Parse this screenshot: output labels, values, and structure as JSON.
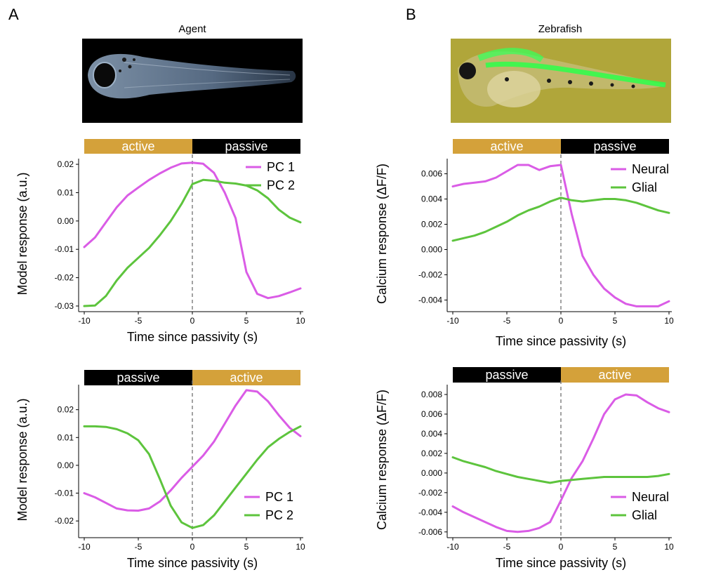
{
  "panels": [
    {
      "letter": "A",
      "image_title": "Agent",
      "image_kind": "agent-fish-image"
    },
    {
      "letter": "B",
      "image_title": "Zebrafish",
      "image_kind": "zebrafish-fluorescence-image"
    }
  ],
  "colors": {
    "magenta": "#DA5CE6",
    "green": "#5DC43D",
    "active": "#D4A13A",
    "passive": "#000000",
    "dashed": "#7a7a7a"
  },
  "chart_data": [
    {
      "id": "A-top",
      "type": "line",
      "xlabel": "Time since passivity (s)",
      "ylabel": "Model response (a.u.)",
      "xlim": [
        -10,
        10
      ],
      "ylim": [
        -0.031,
        0.022
      ],
      "xticks": [
        -10,
        -5,
        0,
        5,
        10
      ],
      "xtick_labels": [
        "-10",
        "-5",
        "0",
        "5",
        "10"
      ],
      "yticks": [
        -0.03,
        -0.02,
        -0.01,
        0.0,
        0.01,
        0.02
      ],
      "ytick_labels": [
        "-0.03",
        "-0.02",
        "-0.01",
        "0.00",
        "0.01",
        "0.02"
      ],
      "bands": [
        {
          "label": "active",
          "from": -10,
          "to": 0
        },
        {
          "label": "passive",
          "from": 0,
          "to": 10
        }
      ],
      "vline_x": 0,
      "legend_position": "top-right",
      "series": [
        {
          "name": "PC 1",
          "color": "magenta",
          "x": [
            -10,
            -9,
            -8,
            -7,
            -6,
            -5,
            -4,
            -3,
            -2,
            -1,
            0,
            1,
            2,
            3,
            4,
            5,
            6,
            7,
            8,
            9,
            10
          ],
          "y": [
            -0.0092,
            -0.0058,
            -0.0005,
            0.0048,
            0.009,
            0.0118,
            0.0145,
            0.0168,
            0.0188,
            0.0203,
            0.0206,
            0.0202,
            0.017,
            0.01,
            0.001,
            -0.018,
            -0.0257,
            -0.0272,
            -0.0265,
            -0.0252,
            -0.0238
          ]
        },
        {
          "name": "PC 2",
          "color": "green",
          "x": [
            -10,
            -9,
            -8,
            -7,
            -6,
            -5,
            -4,
            -3,
            -2,
            -1,
            0,
            1,
            2,
            3,
            4,
            5,
            6,
            7,
            8,
            9,
            10
          ],
          "y": [
            -0.03,
            -0.0298,
            -0.0265,
            -0.021,
            -0.0165,
            -0.013,
            -0.0095,
            -0.005,
            0.0,
            0.006,
            0.013,
            0.0145,
            0.0142,
            0.0135,
            0.0132,
            0.0125,
            0.0108,
            0.008,
            0.004,
            0.0012,
            -0.0005
          ]
        }
      ]
    },
    {
      "id": "B-top",
      "type": "line",
      "xlabel": "Time since passivity (s)",
      "ylabel": "Calcium  response (ΔF/F)",
      "xlim": [
        -10,
        10
      ],
      "ylim": [
        -0.0047,
        0.0072
      ],
      "xticks": [
        -10,
        -5,
        0,
        5,
        10
      ],
      "xtick_labels": [
        "-10",
        "-5",
        "0",
        "5",
        "10"
      ],
      "yticks": [
        -0.004,
        -0.002,
        0.0,
        0.002,
        0.004,
        0.006
      ],
      "ytick_labels": [
        "-0.004",
        "-0.002",
        "0.000",
        "0.002",
        "0.004",
        "0.006"
      ],
      "bands": [
        {
          "label": "active",
          "from": -10,
          "to": 0
        },
        {
          "label": "passive",
          "from": 0,
          "to": 10
        }
      ],
      "vline_x": 0,
      "legend_position": "top-right",
      "series": [
        {
          "name": "Neural",
          "color": "magenta",
          "x": [
            -10,
            -9,
            -8,
            -7,
            -6,
            -5,
            -4,
            -3,
            -2,
            -1,
            0,
            1,
            2,
            3,
            4,
            5,
            6,
            7,
            8,
            9,
            10
          ],
          "y": [
            0.005,
            0.0052,
            0.0053,
            0.0054,
            0.0057,
            0.0062,
            0.0067,
            0.0067,
            0.0063,
            0.0066,
            0.0067,
            0.0028,
            -0.0005,
            -0.002,
            -0.0031,
            -0.0038,
            -0.0043,
            -0.0045,
            -0.0045,
            -0.0045,
            -0.0041
          ]
        },
        {
          "name": "Glial",
          "color": "green",
          "x": [
            -10,
            -9,
            -8,
            -7,
            -6,
            -5,
            -4,
            -3,
            -2,
            -1,
            0,
            1,
            2,
            3,
            4,
            5,
            6,
            7,
            8,
            9,
            10
          ],
          "y": [
            0.0007,
            0.0009,
            0.0011,
            0.0014,
            0.0018,
            0.0022,
            0.0027,
            0.0031,
            0.0034,
            0.0038,
            0.0041,
            0.0039,
            0.0038,
            0.0039,
            0.004,
            0.004,
            0.0039,
            0.0037,
            0.0034,
            0.0031,
            0.0029
          ]
        }
      ]
    },
    {
      "id": "A-bottom",
      "type": "line",
      "xlabel": "Time since passivity (s)",
      "ylabel": "Model response (a.u.)",
      "xlim": [
        -10,
        10
      ],
      "ylim": [
        -0.025,
        0.029
      ],
      "xticks": [
        -10,
        -5,
        0,
        5,
        10
      ],
      "xtick_labels": [
        "-10",
        "-5",
        "0",
        "5",
        "10"
      ],
      "yticks": [
        -0.02,
        -0.01,
        0.0,
        0.01,
        0.02
      ],
      "ytick_labels": [
        "-0.02",
        "-0.01",
        "0.00",
        "0.01",
        "0.02"
      ],
      "bands": [
        {
          "label": "passive",
          "from": -10,
          "to": 0
        },
        {
          "label": "active",
          "from": 0,
          "to": 10
        }
      ],
      "vline_x": 0,
      "legend_position": "bottom-right",
      "series": [
        {
          "name": "PC 1",
          "color": "magenta",
          "x": [
            -10,
            -9,
            -8,
            -7,
            -6,
            -5,
            -4,
            -3,
            -2,
            -1,
            0,
            1,
            2,
            3,
            4,
            5,
            6,
            7,
            8,
            9,
            10
          ],
          "y": [
            -0.01,
            -0.0115,
            -0.0135,
            -0.0155,
            -0.0162,
            -0.0163,
            -0.0155,
            -0.013,
            -0.009,
            -0.0045,
            -0.0005,
            0.0035,
            0.0085,
            0.015,
            0.0215,
            0.027,
            0.0265,
            0.023,
            0.018,
            0.0135,
            0.0105
          ]
        },
        {
          "name": "PC 2",
          "color": "green",
          "x": [
            -10,
            -9,
            -8,
            -7,
            -6,
            -5,
            -4,
            -3,
            -2,
            -1,
            0,
            1,
            2,
            3,
            4,
            5,
            6,
            7,
            8,
            9,
            10
          ],
          "y": [
            0.014,
            0.014,
            0.0138,
            0.013,
            0.0115,
            0.009,
            0.004,
            -0.005,
            -0.0145,
            -0.0205,
            -0.0225,
            -0.0215,
            -0.018,
            -0.013,
            -0.008,
            -0.003,
            0.002,
            0.0065,
            0.0095,
            0.012,
            0.014
          ]
        }
      ]
    },
    {
      "id": "B-bottom",
      "type": "line",
      "xlabel": "Time since passivity (s)",
      "ylabel": "Calcium  response (ΔF/F)",
      "xlim": [
        -10,
        10
      ],
      "ylim": [
        -0.0063,
        0.009
      ],
      "xticks": [
        -10,
        -5,
        0,
        5,
        10
      ],
      "xtick_labels": [
        "-10",
        "-5",
        "0",
        "5",
        "10"
      ],
      "yticks": [
        -0.006,
        -0.004,
        -0.002,
        0.0,
        0.002,
        0.004,
        0.006,
        0.008
      ],
      "ytick_labels": [
        "-0.006",
        "-0.004",
        "-0.002",
        "0.000",
        "0.002",
        "0.004",
        "0.006",
        "0.008"
      ],
      "bands": [
        {
          "label": "passive",
          "from": -10,
          "to": 0
        },
        {
          "label": "active",
          "from": 0,
          "to": 10
        }
      ],
      "vline_x": 0,
      "legend_position": "bottom-right",
      "series": [
        {
          "name": "Neural",
          "color": "magenta",
          "x": [
            -10,
            -9,
            -8,
            -7,
            -6,
            -5,
            -4,
            -3,
            -2,
            -1,
            0,
            1,
            2,
            3,
            4,
            5,
            6,
            7,
            8,
            9,
            10
          ],
          "y": [
            -0.0034,
            -0.004,
            -0.0045,
            -0.005,
            -0.0055,
            -0.0059,
            -0.006,
            -0.0059,
            -0.0056,
            -0.005,
            -0.0028,
            -0.0005,
            0.0012,
            0.0035,
            0.006,
            0.0075,
            0.008,
            0.0079,
            0.0072,
            0.0066,
            0.0062
          ]
        },
        {
          "name": "Glial",
          "color": "green",
          "x": [
            -10,
            -9,
            -8,
            -7,
            -6,
            -5,
            -4,
            -3,
            -2,
            -1,
            0,
            1,
            2,
            3,
            4,
            5,
            6,
            7,
            8,
            9,
            10
          ],
          "y": [
            0.0016,
            0.0012,
            0.0009,
            0.0006,
            0.0002,
            -0.0001,
            -0.0004,
            -0.0006,
            -0.0008,
            -0.001,
            -0.0008,
            -0.0007,
            -0.0006,
            -0.0005,
            -0.0004,
            -0.0004,
            -0.0004,
            -0.0004,
            -0.0004,
            -0.0003,
            -0.0001
          ]
        }
      ]
    }
  ]
}
